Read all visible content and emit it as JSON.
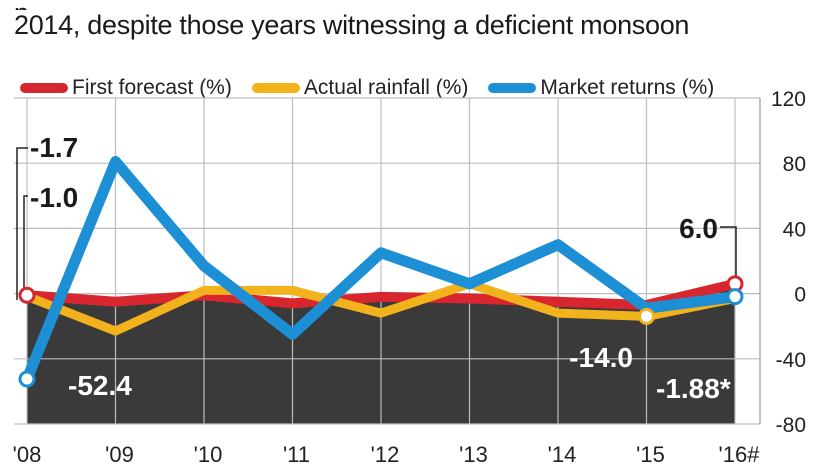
{
  "header": {
    "subtitle_line1": "p",
    "subtitle_line2": "2014, despite those years witnessing a deficient monsoon"
  },
  "chart_data": {
    "type": "line",
    "categories": [
      "'08",
      "'09",
      "'10",
      "'11",
      "'12",
      "'13",
      "'14",
      "'15",
      "'16#"
    ],
    "ylim": [
      -80,
      120
    ],
    "yticks": [
      "120",
      "80",
      "40",
      "0",
      "-40",
      "-80"
    ],
    "grid": true,
    "legend_placement": "top",
    "series": [
      {
        "name": "First forecast (%)",
        "color": "#d7262e",
        "values": [
          -1.0,
          -5.0,
          -1.0,
          -6.0,
          -2.0,
          -3.0,
          -5.0,
          -7.0,
          6.0
        ]
      },
      {
        "name": "Actual rainfall (%)",
        "color": "#f2b21c",
        "values": [
          -1.7,
          -23.0,
          2.0,
          2.0,
          -12.0,
          6.0,
          -12.0,
          -14.0,
          -3.0
        ]
      },
      {
        "name": "Market returns (%)",
        "color": "#1d8fd4",
        "values": [
          -52.4,
          81.0,
          17.0,
          -25.0,
          25.0,
          6.0,
          30.0,
          -9.0,
          -1.88
        ]
      }
    ],
    "annotations": [
      "-1.7",
      "-1.0",
      "-52.4",
      "6.0",
      "-14.0",
      "-1.88*"
    ]
  },
  "colors": {
    "fill_dark": "#3a3a3a",
    "grid": "#bdbdbd"
  }
}
